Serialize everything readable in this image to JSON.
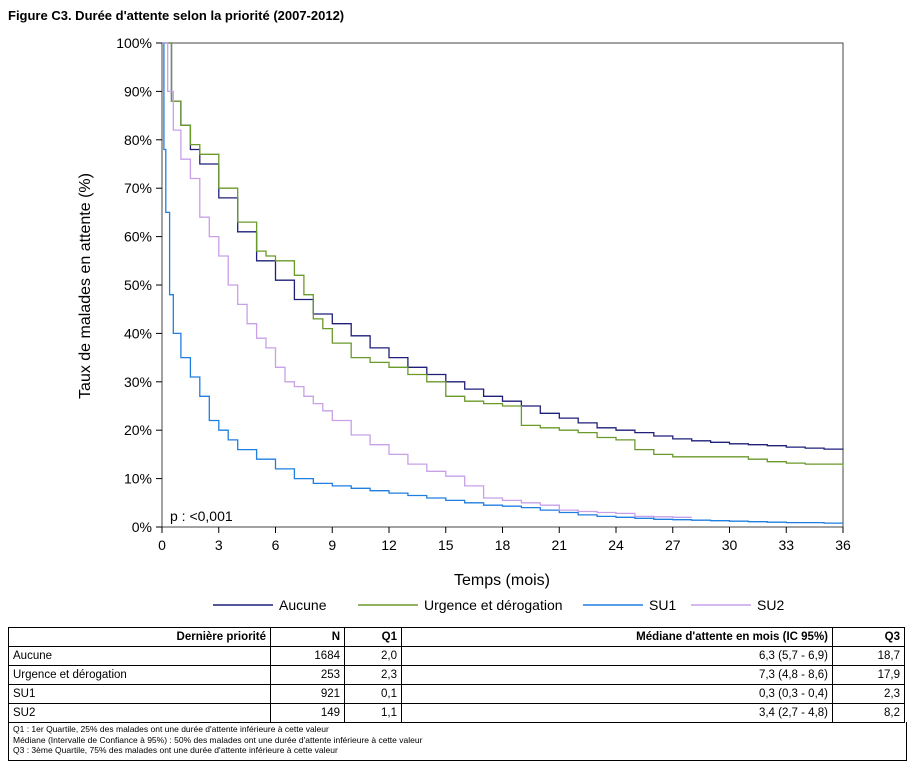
{
  "figure_title": "Figure C3. Durée d'attente selon la priorité (2007-2012)",
  "chart_data": {
    "type": "line",
    "xlabel": "Temps (mois)",
    "ylabel": "Taux de malades en attente (%)",
    "xlim": [
      0,
      36
    ],
    "ylim": [
      0,
      100
    ],
    "xticks": [
      "0",
      "3",
      "6",
      "9",
      "12",
      "15",
      "18",
      "21",
      "24",
      "27",
      "30",
      "33",
      "36"
    ],
    "yticks": [
      "0%",
      "10%",
      "20%",
      "30%",
      "40%",
      "50%",
      "60%",
      "70%",
      "80%",
      "90%",
      "100%"
    ],
    "annotation": "p : <0,001",
    "legend_position": "bottom",
    "grid": false,
    "series": [
      {
        "name": "Aucune",
        "color": "#1f1f7a",
        "x": [
          0,
          0.5,
          1,
          1.5,
          2,
          3,
          4,
          5,
          6,
          7,
          8,
          9,
          10,
          11,
          12,
          13,
          14,
          15,
          16,
          17,
          18,
          19,
          20,
          21,
          22,
          23,
          24,
          25,
          26,
          27,
          28,
          29,
          30,
          31,
          32,
          33,
          34,
          35,
          36
        ],
        "y": [
          100,
          88,
          83,
          78,
          75,
          68,
          61,
          55,
          51,
          47,
          44,
          42,
          39.5,
          37,
          35,
          33,
          31.5,
          30,
          28.5,
          27,
          26,
          25,
          23.5,
          22.5,
          21.5,
          20.5,
          20,
          19.5,
          18.8,
          18.2,
          17.8,
          17.5,
          17.2,
          17,
          16.8,
          16.5,
          16.3,
          16.1,
          16
        ]
      },
      {
        "name": "Urgence et dérogation",
        "color": "#6a9a2a",
        "x": [
          0,
          0.5,
          1,
          1.5,
          2,
          3,
          4,
          5,
          5.5,
          6,
          7,
          7.5,
          8,
          8.5,
          9,
          10,
          11,
          12,
          13,
          14,
          15,
          16,
          17,
          18,
          19,
          20,
          21,
          22,
          23,
          24,
          25,
          26,
          27,
          28,
          29,
          30,
          31,
          32,
          33,
          34,
          35,
          36
        ],
        "y": [
          100,
          88,
          83,
          79,
          77,
          70,
          63,
          57,
          56,
          55,
          52,
          48,
          43,
          41,
          38,
          35,
          34,
          33,
          31.5,
          30,
          27,
          26,
          25.5,
          25,
          21,
          20.5,
          20,
          19.5,
          18.5,
          18,
          16,
          15,
          14.5,
          14.5,
          14.5,
          14.5,
          14,
          13.5,
          13.2,
          13,
          13,
          12.5
        ]
      },
      {
        "name": "SU1",
        "color": "#1f7fe0",
        "x": [
          0,
          0.1,
          0.2,
          0.4,
          0.6,
          1,
          1.5,
          2,
          2.5,
          3,
          3.5,
          4,
          5,
          6,
          7,
          8,
          9,
          10,
          11,
          12,
          13,
          14,
          15,
          16,
          17,
          18,
          19,
          20,
          21,
          22,
          23,
          24,
          25,
          26,
          27,
          28,
          29,
          30,
          31,
          32,
          33,
          34,
          35,
          36
        ],
        "y": [
          100,
          78,
          65,
          48,
          40,
          35,
          31,
          27,
          22,
          20,
          18,
          16,
          14,
          12,
          10,
          9,
          8.5,
          8,
          7.5,
          7,
          6.5,
          6,
          5.5,
          5,
          4.5,
          4.3,
          4,
          3.5,
          3,
          2.5,
          2.2,
          2,
          1.8,
          1.6,
          1.5,
          1.4,
          1.3,
          1.2,
          1.1,
          1,
          0.9,
          0.9,
          0.8,
          0.7
        ]
      },
      {
        "name": "SU2",
        "color": "#c8a0e8",
        "x": [
          0,
          0.3,
          0.6,
          1,
          1.5,
          2,
          2.5,
          3,
          3.5,
          4,
          4.5,
          5,
          5.5,
          6,
          6.5,
          7,
          7.5,
          8,
          8.5,
          9,
          10,
          11,
          12,
          13,
          14,
          15,
          16,
          17,
          18,
          19,
          20,
          21,
          22,
          23,
          24,
          25,
          26,
          27,
          28
        ],
        "y": [
          100,
          90,
          82,
          76,
          72,
          64,
          60,
          56,
          50,
          46,
          42,
          39,
          37,
          33,
          30,
          29,
          27,
          25.5,
          24,
          22,
          19,
          17,
          15,
          13,
          11.5,
          10.5,
          8.5,
          6,
          5.5,
          5,
          4.5,
          3.5,
          3.2,
          3,
          2.8,
          2.2,
          2.1,
          2,
          2
        ]
      }
    ]
  },
  "table": {
    "headers": [
      "Dernière priorité",
      "N",
      "Q1",
      "Médiane d'attente en mois (IC 95%)",
      "Q3"
    ],
    "rows": [
      [
        "Aucune",
        "1684",
        "2,0",
        "6,3 (5,7 - 6,9)",
        "18,7"
      ],
      [
        "Urgence et dérogation",
        "253",
        "2,3",
        "7,3 (4,8 - 8,6)",
        "17,9"
      ],
      [
        "SU1",
        "921",
        "0,1",
        "0,3 (0,3 - 0,4)",
        "2,3"
      ],
      [
        "SU2",
        "149",
        "1,1",
        "3,4 (2,7 - 4,8)",
        "8,2"
      ]
    ]
  },
  "notes": [
    "Q1 : 1er Quartile, 25% des malades ont une durée d'attente inférieure à cette valeur",
    "Médiane (Intervalle de Confiance à 95%) : 50% des malades ont une durée d'attente inférieure à cette valeur",
    "Q3 : 3ème Quartile, 75% des malades ont une durée d'attente inférieure à cette valeur"
  ]
}
